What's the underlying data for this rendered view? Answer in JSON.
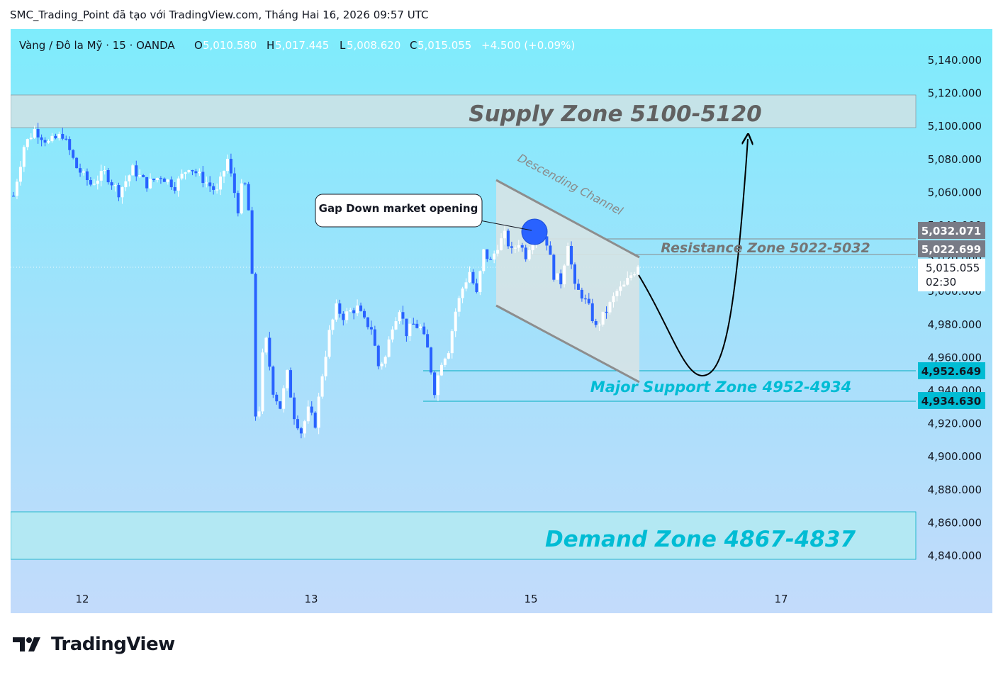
{
  "header": {
    "credit": "SMC_Trading_Point đã tạo với TradingView.com, Tháng Hai 16, 2026 09:57 UTC"
  },
  "legend": {
    "symbol": "Vàng / Đô la Mỹ · 15 · OANDA",
    "o_label": "O",
    "o_value": "5,010.580",
    "h_label": "H",
    "h_value": "5,017.445",
    "l_label": "L",
    "l_value": "5,008.620",
    "c_label": "C",
    "c_value": "5,015.055",
    "change": "+4.500 (+0.09%)"
  },
  "price_axis": {
    "ticks": [
      "5,140.000",
      "5,120.000",
      "5,100.000",
      "5,080.000",
      "5,060.000",
      "5,040.000",
      "5,020.000",
      "5,000.000",
      "4,980.000",
      "4,960.000",
      "4,940.000",
      "4,920.000",
      "4,900.000",
      "4,880.000",
      "4,860.000",
      "4,840.000"
    ],
    "tags": {
      "resistance_high": "5,032.071",
      "resistance_low": "5,022.699",
      "last_price": "5,015.055",
      "countdown": "02:30",
      "support_high": "4,952.649",
      "support_low": "4,934.630"
    }
  },
  "time_axis": {
    "labels": [
      "12",
      "13",
      "15",
      "17"
    ]
  },
  "annotations": {
    "supply_zone": "Supply Zone 5100-5120",
    "resistance_zone": "Resistance Zone 5022-5032",
    "descending_channel": "Descending Channel",
    "gap_callout": "Gap Down market opening",
    "support_zone": "Major Support Zone 4952-4934",
    "demand_zone": "Demand Zone 4867-4837"
  },
  "logo": {
    "text": "TradingView"
  },
  "colors": {
    "up": "#ffffff",
    "down": "#2962ff",
    "zone_text": "#00bcd4",
    "supply_text": "#616161",
    "bg_top": "#7ee6fb",
    "bg_bottom": "#c2dcfb"
  },
  "chart_data": {
    "type": "candlestick",
    "symbol": "XAU/USD",
    "timeframe": "15",
    "ylim": [
      4830,
      5150
    ],
    "zones": [
      {
        "name": "Supply Zone 5100-5120",
        "low": 5100,
        "high": 5120
      },
      {
        "name": "Resistance Zone 5022-5032",
        "low": 5022.699,
        "high": 5032.071
      },
      {
        "name": "Major Support Zone 4952-4934",
        "low": 4934.63,
        "high": 4952.649
      },
      {
        "name": "Demand Zone 4867-4837",
        "low": 4837,
        "high": 4867
      }
    ],
    "x_labels": [
      "12",
      "13",
      "15",
      "17"
    ],
    "last": {
      "open": 5010.58,
      "high": 5017.445,
      "low": 5008.62,
      "close": 5015.055
    },
    "price_path": [
      [
        0,
        5058
      ],
      [
        1.5,
        5088
      ],
      [
        3,
        5098
      ],
      [
        5,
        5090
      ],
      [
        7,
        5095
      ],
      [
        9,
        5075
      ],
      [
        11,
        5065
      ],
      [
        13,
        5072
      ],
      [
        15,
        5060
      ],
      [
        17,
        5074
      ],
      [
        19,
        5065
      ],
      [
        21,
        5070
      ],
      [
        23,
        5064
      ],
      [
        25,
        5076
      ],
      [
        27,
        5068
      ],
      [
        29,
        5060
      ],
      [
        30.5,
        5080
      ],
      [
        31.5,
        5060
      ],
      [
        32,
        5050
      ],
      [
        32.8,
        5070
      ],
      [
        33.8,
        5040
      ],
      [
        34.3,
        4960
      ],
      [
        34.7,
        4890
      ],
      [
        35.2,
        4955
      ],
      [
        36,
        4970
      ],
      [
        37,
        4940
      ],
      [
        38,
        4930
      ],
      [
        39,
        4950
      ],
      [
        40,
        4925
      ],
      [
        41,
        4915
      ],
      [
        42,
        4928
      ],
      [
        43,
        4920
      ],
      [
        44,
        4950
      ],
      [
        45,
        4975
      ],
      [
        46,
        4990
      ],
      [
        47,
        4985
      ],
      [
        48,
        4988
      ],
      [
        49,
        4990
      ],
      [
        50,
        4982
      ],
      [
        51,
        4978
      ],
      [
        52,
        4955
      ],
      [
        53,
        4960
      ],
      [
        54,
        4980
      ],
      [
        55,
        4990
      ],
      [
        56,
        4975
      ],
      [
        57,
        4980
      ],
      [
        58,
        4978
      ],
      [
        59,
        4965
      ],
      [
        60,
        4940
      ],
      [
        61,
        4958
      ],
      [
        62,
        4965
      ],
      [
        63,
        4988
      ],
      [
        64,
        5002
      ],
      [
        65,
        5012
      ],
      [
        66,
        4998
      ],
      [
        67,
        5024
      ],
      [
        68,
        5018
      ],
      [
        69,
        5028
      ],
      [
        70,
        5034
      ],
      [
        71,
        5024
      ],
      [
        72,
        5030
      ],
      [
        73,
        5022
      ],
      [
        74,
        5033
      ],
      [
        75,
        5038
      ],
      [
        76,
        5030
      ],
      [
        77,
        5010
      ],
      [
        78,
        5006
      ],
      [
        79,
        5030
      ],
      [
        80,
        5002
      ],
      [
        81,
        4998
      ],
      [
        82,
        4990
      ],
      [
        83,
        4978
      ],
      [
        84,
        4985
      ],
      [
        85,
        4992
      ],
      [
        86,
        5000
      ],
      [
        87,
        5003
      ],
      [
        88,
        5010
      ],
      [
        89,
        5015
      ]
    ],
    "projection": [
      [
        89,
        5015
      ],
      [
        98,
        4951
      ],
      [
        103,
        5096
      ]
    ],
    "channel": {
      "top": [
        [
          68,
          5058
        ],
        [
          89,
          5023
        ]
      ],
      "bottom": [
        [
          68,
          4995
        ],
        [
          89,
          4958
        ]
      ]
    }
  }
}
